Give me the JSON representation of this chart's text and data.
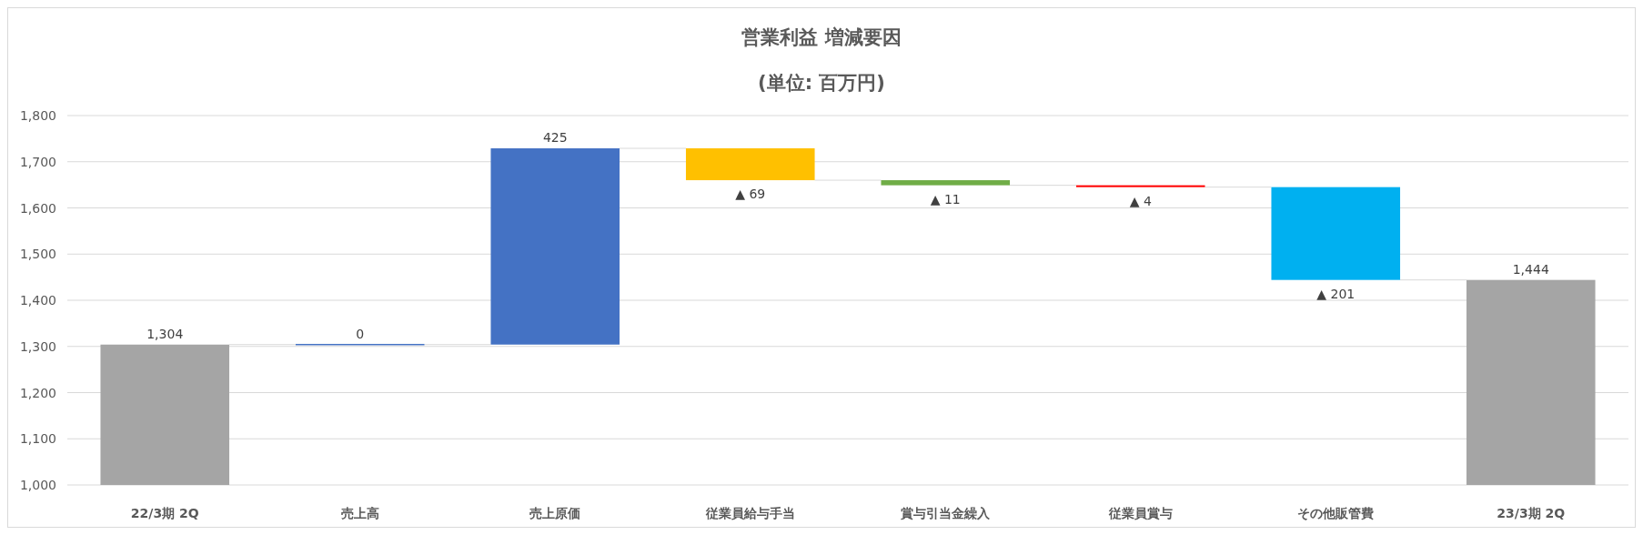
{
  "chart_data": {
    "type": "bar",
    "title": "営業利益 増減要因",
    "subtitle": "(単位: 百万円)",
    "categories": [
      "22/3期 2Q",
      "売上高",
      "売上原価",
      "従業員給与手当",
      "賞与引当金繰入",
      "従業員賞与",
      "その他販管費",
      "23/3期 2Q"
    ],
    "values": [
      1304,
      0,
      425,
      -69,
      -11,
      -4,
      -201,
      1444
    ],
    "base": [
      null,
      1304,
      1304,
      1729,
      1660,
      1649,
      1645,
      null
    ],
    "colors": [
      "#a5a5a5",
      "#4472c4",
      "#4472c4",
      "#ffc000",
      "#70ad47",
      "#ff0000",
      "#00b0f0",
      "#a5a5a5"
    ],
    "value_labels": [
      "1,304",
      "0",
      "425",
      "▲ 69",
      "▲ 11",
      "▲ 4",
      "▲ 201",
      "1,444"
    ],
    "ylim": [
      1000,
      1800
    ],
    "yticks": [
      {
        "value": 1000,
        "label": "1,000"
      },
      {
        "value": 1100,
        "label": "1,100"
      },
      {
        "value": 1200,
        "label": "1,200"
      },
      {
        "value": 1300,
        "label": "1,300"
      },
      {
        "value": 1400,
        "label": "1,400"
      },
      {
        "value": 1500,
        "label": "1,500"
      },
      {
        "value": 1600,
        "label": "1,600"
      },
      {
        "value": 1700,
        "label": "1,700"
      },
      {
        "value": 1800,
        "label": "1,800"
      }
    ],
    "grid": "y"
  }
}
